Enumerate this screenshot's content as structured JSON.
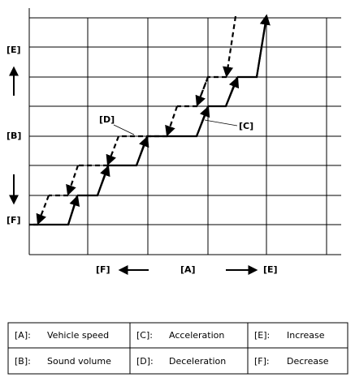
{
  "diagram": {
    "y_axis": {
      "top": "[E]",
      "middle": "[B]",
      "bottom": "[F]"
    },
    "x_axis": {
      "left": "[F]",
      "middle": "[A]",
      "right": "[E]"
    },
    "callouts": {
      "deceleration": "[D]",
      "acceleration": "[C]"
    },
    "legend": {
      "rows": [
        [
          {
            "key": "[A]:",
            "text": "Vehicle speed"
          },
          {
            "key": "[C]:",
            "text": "Acceleration"
          },
          {
            "key": "[E]:",
            "text": "Increase"
          }
        ],
        [
          {
            "key": "[B]:",
            "text": "Sound volume"
          },
          {
            "key": "[D]:",
            "text": "Deceleration"
          },
          {
            "key": "[F]:",
            "text": "Decrease"
          }
        ]
      ]
    }
  }
}
